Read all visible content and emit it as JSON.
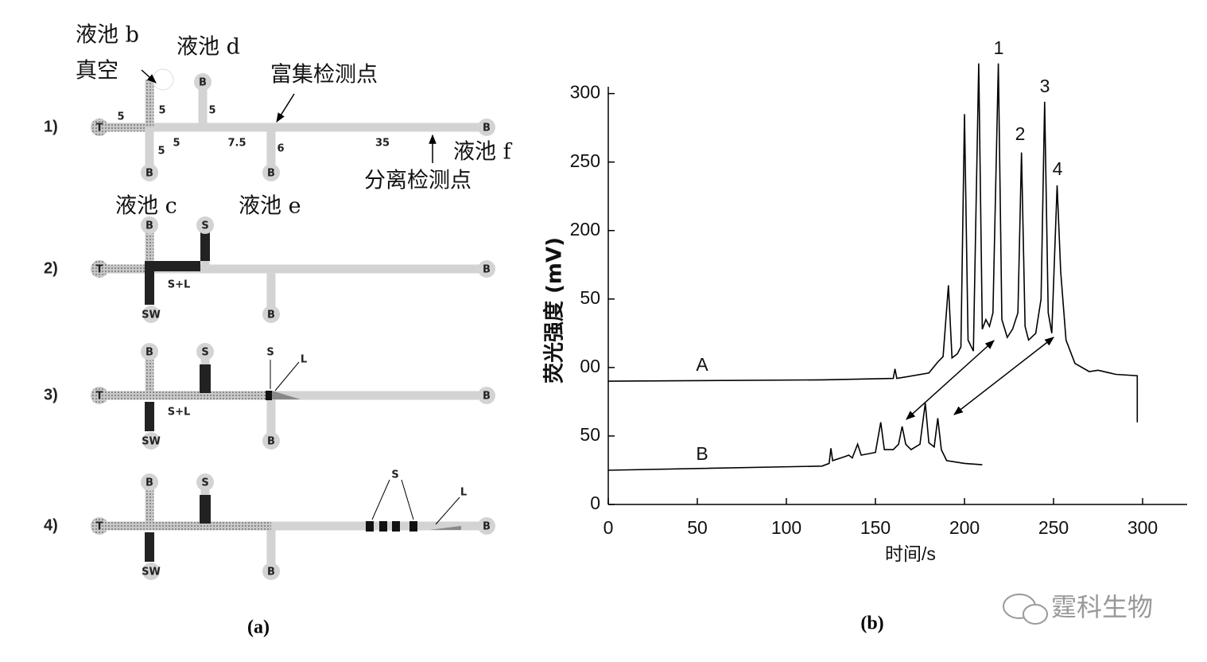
{
  "diagram": {
    "caption": "(a)",
    "rows": [
      {
        "label": "1)",
        "reservoirs": [
          "T",
          "B",
          "B",
          "B",
          "B"
        ],
        "lengths": [
          "5",
          "5",
          "5",
          "5",
          "5",
          "7.5",
          "6",
          "35"
        ],
        "notes": [
          "液池 b",
          "真空",
          "液池 d",
          "富集检测点",
          "液池 f",
          "分离检测点",
          "液池 c",
          "液池 e"
        ]
      },
      {
        "label": "2)",
        "reservoirs": [
          "T",
          "B",
          "S",
          "SW",
          "B",
          "B"
        ],
        "notes": [
          "S+L"
        ]
      },
      {
        "label": "3)",
        "reservoirs": [
          "T",
          "B",
          "S",
          "SW",
          "B",
          "B"
        ],
        "notes": [
          "S+L",
          "S",
          "L"
        ]
      },
      {
        "label": "4)",
        "reservoirs": [
          "T",
          "B",
          "S",
          "SW",
          "B",
          "B"
        ],
        "notes": [
          "S",
          "L"
        ]
      }
    ]
  },
  "chart_data": {
    "type": "line",
    "caption": "(b)",
    "x_label": "时间/s",
    "y_label": "荧光强度 (mV)",
    "xlim": [
      0,
      325
    ],
    "xticks": [
      0,
      50,
      100,
      150,
      200,
      250,
      300
    ],
    "ylim": [
      0,
      305
    ],
    "yticks": [
      0,
      {
        "value": 50,
        "label": "50"
      },
      {
        "value": 100,
        "label": "00"
      },
      {
        "value": 150,
        "label": "50"
      },
      {
        "value": 200,
        "label": "200"
      },
      250,
      300
    ],
    "peak_labels": [
      "1",
      "2",
      "3",
      "4"
    ],
    "series": [
      {
        "name": "A",
        "color": "#000000",
        "x": [
          0,
          120,
          160,
          161,
          162,
          180,
          185,
          188,
          191,
          193,
          196,
          198,
          200,
          202,
          205,
          208,
          210,
          212,
          214,
          216,
          219,
          221,
          224,
          227,
          230,
          232,
          234,
          236,
          240,
          243,
          245,
          247,
          249,
          252,
          254,
          257,
          262,
          270,
          275,
          285,
          297,
          297
        ],
        "values": [
          90,
          91,
          92,
          99,
          92,
          96,
          104,
          108,
          160,
          107,
          110,
          115,
          285,
          120,
          112,
          322,
          128,
          135,
          130,
          140,
          322,
          135,
          122,
          128,
          140,
          257,
          130,
          120,
          125,
          150,
          294,
          140,
          125,
          233,
          170,
          120,
          103,
          97,
          98,
          95,
          94,
          60
        ]
      },
      {
        "name": "B",
        "color": "#000000",
        "x": [
          0,
          120,
          124,
          125,
          126,
          133,
          135,
          137,
          140,
          142,
          150,
          153,
          155,
          160,
          163,
          165,
          167,
          170,
          175,
          178,
          180,
          183,
          185,
          187,
          190,
          200,
          210
        ],
        "values": [
          25,
          28,
          30,
          41,
          32,
          35,
          36,
          34,
          44,
          36,
          38,
          60,
          40,
          40,
          44,
          57,
          44,
          40,
          44,
          74,
          45,
          42,
          63,
          40,
          32,
          30,
          29
        ]
      }
    ]
  },
  "watermark": "霆科生物"
}
